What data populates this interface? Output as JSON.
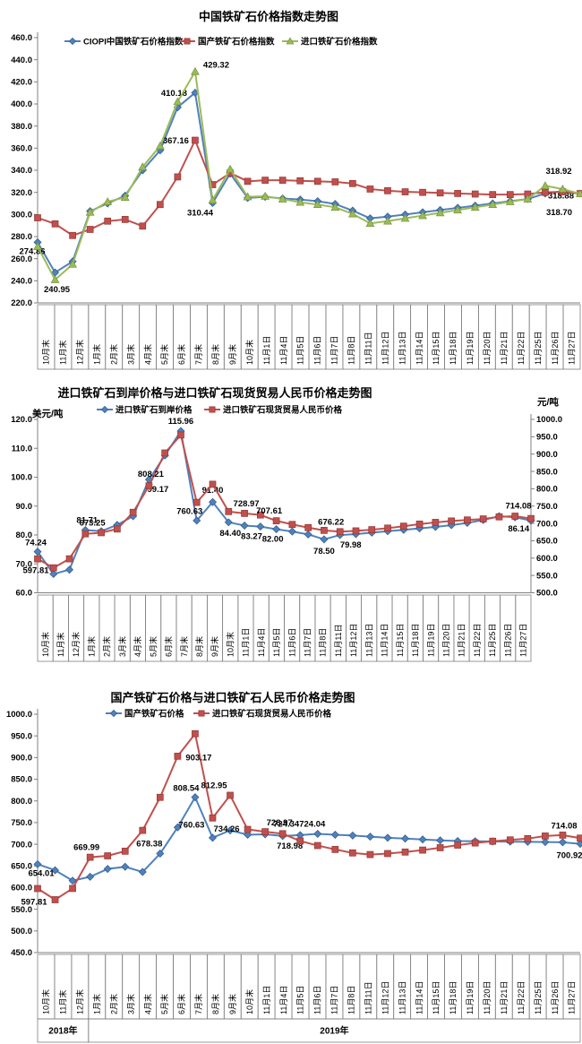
{
  "categories": [
    "10月末",
    "11月末",
    "12月末",
    "1月末",
    "2月末",
    "3月末",
    "4月末",
    "5月末",
    "6月末",
    "7月末",
    "8月末",
    "9月末",
    "10月末",
    "11月1日",
    "11月4日",
    "11月5日",
    "11月6日",
    "11月7日",
    "11月8日",
    "11月11日",
    "11月12日",
    "11月13日",
    "11月14日",
    "11月15日",
    "11月18日",
    "11月19日",
    "11月20日",
    "11月21日",
    "11月22日",
    "11月25日",
    "11月26日",
    "11月27日"
  ],
  "chart_data": [
    {
      "type": "line",
      "title": "中国铁矿石价格指数走势图",
      "ylim": [
        220,
        460
      ],
      "y_axis": {
        "min": 220,
        "max": 460,
        "step": 20
      },
      "grid": false,
      "legend_position": "top",
      "series": [
        {
          "name": "CIOPI中国铁矿石价格指数",
          "color": "#4F81BD",
          "edge": "#2E5A88",
          "marker": "diamond",
          "axis": "left",
          "values": [
            274.86,
            247.5,
            257.5,
            303,
            310,
            317,
            340,
            358,
            397,
            410.18,
            310.44,
            337,
            315,
            316,
            314.5,
            313.5,
            312,
            309.5,
            303.5,
            296.5,
            298,
            300,
            302,
            304,
            306,
            308,
            310,
            312,
            314,
            319,
            321,
            318.88
          ],
          "labels": [
            {
              "i": 0,
              "t": "274.86",
              "pos": "below",
              "dx": -6,
              "dy": 0
            },
            {
              "i": 9,
              "t": "410.18",
              "pos": "left",
              "dx": -2,
              "dy": 0
            },
            {
              "i": 10,
              "t": "310.44",
              "pos": "below",
              "dx": -14,
              "dy": 1
            },
            {
              "i": 31,
              "t": "318.88",
              "pos": "left",
              "dx": 0,
              "dy": 2
            }
          ]
        },
        {
          "name": "国产铁矿石价格指数",
          "color": "#C0504D",
          "edge": "#943634",
          "marker": "square",
          "axis": "left",
          "values": [
            297,
            291.5,
            281,
            286.5,
            294,
            295.5,
            289.5,
            309,
            334,
            367.16,
            327,
            337.5,
            330,
            331,
            331,
            330.5,
            330,
            329.5,
            328,
            323,
            321.5,
            320.5,
            320,
            319.5,
            319,
            318.5,
            318,
            318,
            318.5,
            320,
            320.5,
            318.92
          ],
          "labels": [
            {
              "i": 9,
              "t": "367.16",
              "pos": "left",
              "dx": 0,
              "dy": 0
            },
            {
              "i": 31,
              "t": "318.92",
              "pos": "above",
              "dx": -24,
              "dy": -16
            }
          ]
        },
        {
          "name": "进口铁矿石价格指数",
          "color": "#9BBB59",
          "edge": "#77933C",
          "marker": "triangle",
          "axis": "left",
          "values": [
            271,
            240.95,
            255,
            302,
            311.5,
            315.5,
            343,
            362,
            402,
            429.32,
            313,
            341,
            316,
            316.5,
            314,
            311,
            309,
            306.5,
            300.5,
            292,
            294,
            296.5,
            299,
            301.5,
            304,
            306.5,
            309,
            311.5,
            314,
            326,
            323,
            318.7
          ],
          "labels": [
            {
              "i": 1,
              "t": "240.95",
              "pos": "below",
              "dx": 2,
              "dy": 1
            },
            {
              "i": 9,
              "t": "429.32",
              "pos": "right",
              "dx": 2,
              "dy": -8
            },
            {
              "i": 31,
              "t": "318.70",
              "pos": "left",
              "dx": -2,
              "dy": 20
            }
          ]
        }
      ]
    },
    {
      "type": "line",
      "title": "进口铁矿石到岸价格与进口铁矿石现货贸易人民币价格走势图",
      "unit_left": "美元/吨",
      "unit_right": "元/吨",
      "ylim": [
        60,
        120
      ],
      "y2lim": [
        500,
        1000
      ],
      "y_axis": {
        "min": 60,
        "max": 120,
        "step": 10
      },
      "y2_axis": {
        "min": 500,
        "max": 1000,
        "step": 50
      },
      "grid": false,
      "legend_position": "top",
      "series": [
        {
          "name": "进口铁矿石到岸价格",
          "color": "#4F81BD",
          "edge": "#2E5A88",
          "marker": "diamond",
          "axis": "left",
          "values": [
            74.24,
            66.5,
            68,
            81.71,
            81.3,
            83.5,
            86.5,
            99.17,
            107.5,
            115.96,
            85,
            91.4,
            84.4,
            83.27,
            82.9,
            82,
            81.2,
            80.2,
            78.5,
            79.98,
            80.3,
            80.8,
            81.3,
            81.8,
            82.3,
            82.8,
            83.4,
            84.2,
            85.2,
            86.5,
            86.14,
            85
          ],
          "labels": [
            {
              "i": 0,
              "t": "74.24",
              "pos": "above",
              "dx": -2,
              "dy": -1
            },
            {
              "i": 3,
              "t": "81.71",
              "pos": "above",
              "dx": 2,
              "dy": -2
            },
            {
              "i": 7,
              "t": "99.17",
              "pos": "below",
              "dx": 10,
              "dy": 1
            },
            {
              "i": 9,
              "t": "115.96",
              "pos": "above",
              "dx": 0,
              "dy": -2
            },
            {
              "i": 11,
              "t": "91.40",
              "pos": "above",
              "dx": 0,
              "dy": -4
            },
            {
              "i": 12,
              "t": "84.40",
              "pos": "below",
              "dx": 2,
              "dy": 2
            },
            {
              "i": 13,
              "t": "83.27",
              "pos": "below",
              "dx": 8,
              "dy": 2
            },
            {
              "i": 15,
              "t": "82.00",
              "pos": "below",
              "dx": -4,
              "dy": 1
            },
            {
              "i": 18,
              "t": "78.50",
              "pos": "below",
              "dx": 0,
              "dy": 3
            },
            {
              "i": 19,
              "t": "79.98",
              "pos": "below",
              "dx": 12,
              "dy": 1
            },
            {
              "i": 30,
              "t": "86.14",
              "pos": "below",
              "dx": 4,
              "dy": 3
            }
          ]
        },
        {
          "name": "进口铁矿石现货贸易人民币价格",
          "color": "#C0504D",
          "edge": "#943634",
          "marker": "square",
          "axis": "right",
          "values": [
            597.81,
            572,
            598,
            669.99,
            673.25,
            684,
            732,
            808.21,
            903.17,
            955,
            760.63,
            812.95,
            734.26,
            728.97,
            724.34,
            707.61,
            697,
            688,
            680,
            676.22,
            678.5,
            682,
            686.5,
            692,
            698,
            703,
            707,
            710,
            713,
            719,
            721,
            714.08
          ],
          "labels": [
            {
              "i": 0,
              "t": "597.81",
              "pos": "below",
              "dx": -2,
              "dy": 3
            },
            {
              "i": 4,
              "t": "673.25",
              "pos": "above",
              "dx": -10,
              "dy": -2
            },
            {
              "i": 7,
              "t": "808.21",
              "pos": "above",
              "dx": 2,
              "dy": -4
            },
            {
              "i": 10,
              "t": "760.63",
              "pos": "below",
              "dx": -8,
              "dy": 0
            },
            {
              "i": 13,
              "t": "728.97",
              "pos": "above",
              "dx": 2,
              "dy": -2
            },
            {
              "i": 15,
              "t": "707.61",
              "pos": "above",
              "dx": -8,
              "dy": -2
            },
            {
              "i": 19,
              "t": "676.22",
              "pos": "above",
              "dx": -10,
              "dy": -2
            },
            {
              "i": 31,
              "t": "714.08",
              "pos": "above",
              "dx": -14,
              "dy": -5
            }
          ]
        }
      ]
    },
    {
      "type": "line",
      "title": "国产铁矿石价格与进口铁矿石人民币价格走势图",
      "ylim": [
        450,
        1000
      ],
      "y_axis": {
        "min": 450,
        "max": 1000,
        "step": 50
      },
      "grid": false,
      "legend_position": "top",
      "x_groups": [
        {
          "label": "2018年",
          "span": 3
        },
        {
          "label": "2019年",
          "span": 29
        }
      ],
      "series": [
        {
          "name": "国产铁矿石价格",
          "color": "#4F81BD",
          "edge": "#2E5A88",
          "marker": "diamond",
          "axis": "left",
          "values": [
            654.01,
            640,
            616,
            625,
            643,
            648,
            636,
            678.38,
            739,
            808.54,
            715,
            732,
            722,
            723,
            718.98,
            721,
            724.04,
            722,
            720,
            717.5,
            715,
            713,
            711,
            709,
            707.5,
            707,
            706.5,
            706,
            705.5,
            705,
            704.5,
            700.92
          ],
          "labels": [
            {
              "i": 0,
              "t": "654.01",
              "pos": "below",
              "dx": 4,
              "dy": 0
            },
            {
              "i": 7,
              "t": "678.38",
              "pos": "above",
              "dx": -12,
              "dy": -2
            },
            {
              "i": 9,
              "t": "808.54",
              "pos": "above",
              "dx": -10,
              "dy": -1
            },
            {
              "i": 14,
              "t": "718.98",
              "pos": "below",
              "dx": 8,
              "dy": 1
            },
            {
              "i": 16,
              "t": "724.04",
              "pos": "above",
              "dx": -6,
              "dy": -2
            },
            {
              "i": 31,
              "t": "700.92",
              "pos": "below",
              "dx": -12,
              "dy": 3
            }
          ]
        },
        {
          "name": "进口铁矿石现货贸易人民币价格",
          "color": "#C0504D",
          "edge": "#943634",
          "marker": "square",
          "axis": "left",
          "values": [
            597.81,
            572,
            598,
            669.99,
            673.25,
            684,
            732,
            808.21,
            903.17,
            955,
            760.63,
            812.95,
            734.26,
            728.97,
            724.34,
            707.61,
            697,
            688,
            680,
            676.22,
            678.5,
            682,
            686.5,
            692,
            698,
            703,
            707,
            710,
            713,
            719,
            721,
            714.08
          ],
          "labels": [
            {
              "i": 0,
              "t": "597.81",
              "pos": "below",
              "dx": -4,
              "dy": 5
            },
            {
              "i": 3,
              "t": "669.99",
              "pos": "above",
              "dx": -4,
              "dy": -2
            },
            {
              "i": 8,
              "t": "903.17",
              "pos": "right",
              "dx": 2,
              "dy": 1
            },
            {
              "i": 10,
              "t": "760.63",
              "pos": "left",
              "dx": -2,
              "dy": 7
            },
            {
              "i": 11,
              "t": "812.95",
              "pos": "above",
              "dx": -18,
              "dy": -2
            },
            {
              "i": 12,
              "t": "734.26",
              "pos": "left",
              "dx": -2,
              "dy": -1
            },
            {
              "i": 13,
              "t": "728.97",
              "pos": "above",
              "dx": 16,
              "dy": -1
            },
            {
              "i": 14,
              "t": "724.34",
              "pos": "above",
              "dx": 4,
              "dy": -2
            },
            {
              "i": 31,
              "t": "714.08",
              "pos": "above",
              "dx": -18,
              "dy": -5
            }
          ]
        }
      ]
    }
  ]
}
